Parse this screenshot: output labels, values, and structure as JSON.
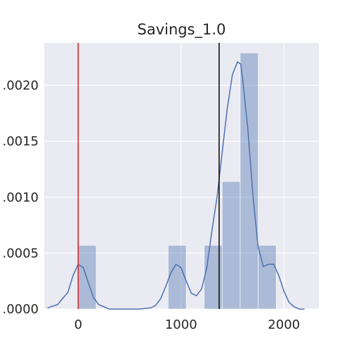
{
  "chart_data": {
    "type": "histogram",
    "title": "Savings_1.0",
    "xlabel": "",
    "ylabel": "",
    "xlim": [
      -330,
      2340
    ],
    "ylim": [
      0,
      0.00238
    ],
    "grid": true,
    "background": "#EAEAF2",
    "bar_color": "#4C72B0",
    "bar_opacity": 0.4,
    "kde_color": "#4C72B0",
    "x_ticks": [
      0,
      1000,
      2000
    ],
    "x_tick_labels": [
      "0",
      "1000",
      "2000"
    ],
    "y_ticks": [
      0.0,
      0.0005,
      0.001,
      0.0015,
      0.002
    ],
    "y_tick_labels": [
      ".0000",
      ".0005",
      ".0010",
      ".0015",
      ".0020"
    ],
    "bins": [
      {
        "start": 0,
        "end": 175,
        "density": 0.00057
      },
      {
        "start": 175,
        "end": 350,
        "density": 0
      },
      {
        "start": 350,
        "end": 525,
        "density": 0
      },
      {
        "start": 525,
        "end": 700,
        "density": 0
      },
      {
        "start": 700,
        "end": 875,
        "density": 0
      },
      {
        "start": 875,
        "end": 1050,
        "density": 0.00057
      },
      {
        "start": 1050,
        "end": 1225,
        "density": 0
      },
      {
        "start": 1225,
        "end": 1400,
        "density": 0.00057
      },
      {
        "start": 1400,
        "end": 1575,
        "density": 0.00114
      },
      {
        "start": 1575,
        "end": 1750,
        "density": 0.00229
      },
      {
        "start": 1750,
        "end": 1925,
        "density": 0.00057
      }
    ],
    "kde": {
      "x": [
        -300,
        -200,
        -100,
        -50,
        0,
        50,
        100,
        150,
        200,
        300,
        400,
        500,
        600,
        700,
        750,
        800,
        850,
        900,
        950,
        1000,
        1050,
        1100,
        1150,
        1200,
        1250,
        1300,
        1350,
        1400,
        1450,
        1500,
        1550,
        1580,
        1600,
        1650,
        1700,
        1750,
        1800,
        1850,
        1900,
        1950,
        2000,
        2050,
        2100,
        2150,
        2200
      ],
      "y": [
        1e-05,
        4e-05,
        0.00015,
        0.0003,
        0.0004,
        0.00037,
        0.00023,
        0.0001,
        4e-05,
        0.0,
        0.0,
        0.0,
        0.0,
        1e-05,
        3e-05,
        9e-05,
        0.0002,
        0.00032,
        0.0004,
        0.00037,
        0.00025,
        0.00014,
        0.00012,
        0.00018,
        0.00037,
        0.0007,
        0.001,
        0.0014,
        0.0018,
        0.0021,
        0.00221,
        0.00219,
        0.00205,
        0.0016,
        0.001,
        0.00055,
        0.00038,
        0.0004,
        0.0004,
        0.0003,
        0.00016,
        6e-05,
        2e-05,
        0.0,
        0.0
      ]
    },
    "vertical_lines": [
      {
        "x": 0,
        "color": "#D62728"
      },
      {
        "x": 1370,
        "color": "#111111"
      }
    ]
  }
}
